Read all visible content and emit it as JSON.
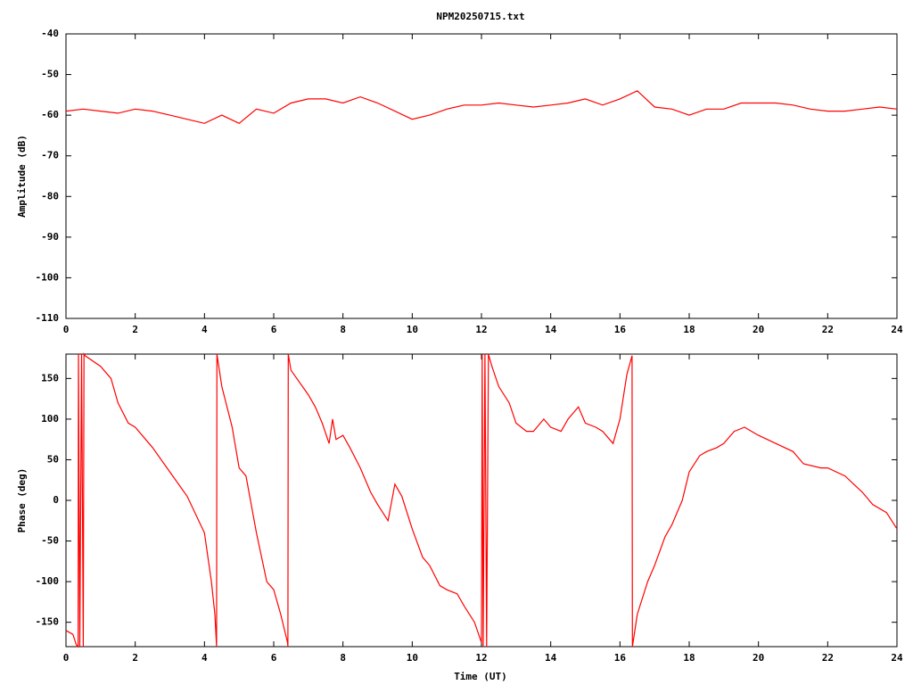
{
  "chart_data": [
    {
      "type": "line",
      "title": "NPM20250715.txt",
      "ylabel": "Amplitude (dB)",
      "color": "#ff0000",
      "xlim": [
        0,
        24
      ],
      "xticks": [
        0,
        2,
        4,
        6,
        8,
        10,
        12,
        14,
        16,
        18,
        20,
        22,
        24
      ],
      "ylim": [
        -110,
        -40
      ],
      "yticks": [
        -110,
        -100,
        -90,
        -80,
        -70,
        -60,
        -50,
        -40
      ],
      "x": [
        0,
        0.5,
        1,
        1.5,
        2,
        2.5,
        3,
        3.5,
        4,
        4.5,
        5,
        5.5,
        6,
        6.5,
        7,
        7.5,
        8,
        8.5,
        9,
        9.5,
        10,
        10.5,
        11,
        11.5,
        12,
        12.5,
        13,
        13.5,
        14,
        14.5,
        15,
        15.5,
        16,
        16.5,
        17,
        17.5,
        18,
        18.5,
        19,
        19.5,
        20,
        20.5,
        21,
        21.5,
        22,
        22.5,
        23,
        23.5,
        24
      ],
      "values": [
        -59,
        -58.5,
        -59,
        -59.5,
        -58.5,
        -59,
        -60,
        -61,
        -62,
        -60,
        -62,
        -58.5,
        -59.5,
        -57,
        -56,
        -56,
        -57,
        -55.5,
        -57,
        -59,
        -61,
        -60,
        -58.5,
        -57.5,
        -57.5,
        -57,
        -57.5,
        -58,
        -57.5,
        -57,
        -56,
        -57.5,
        -56,
        -54,
        -58,
        -58.5,
        -60,
        -58.5,
        -58.5,
        -57,
        -57,
        -57,
        -57.5,
        -58.5,
        -59,
        -59,
        -58.5,
        -58,
        -58.5
      ]
    },
    {
      "type": "line",
      "xlabel": "Time (UT)",
      "ylabel": "Phase (deg)",
      "color": "#ff0000",
      "xlim": [
        0,
        24
      ],
      "xticks": [
        0,
        2,
        4,
        6,
        8,
        10,
        12,
        14,
        16,
        18,
        20,
        22,
        24
      ],
      "ylim": [
        -180,
        180
      ],
      "yticks": [
        -150,
        -100,
        -50,
        0,
        50,
        100,
        150
      ],
      "x": [
        0,
        0.2,
        0.3,
        0.35,
        0.36,
        0.4,
        0.45,
        0.5,
        0.52,
        0.55,
        1,
        1.3,
        1.5,
        1.8,
        2,
        2.5,
        3,
        3.5,
        4,
        4.2,
        4.3,
        4.35,
        4.36,
        4.5,
        4.8,
        5,
        5.2,
        5.5,
        5.8,
        6,
        6.2,
        6.4,
        6.41,
        6.42,
        6.5,
        7,
        7.2,
        7.4,
        7.6,
        7.7,
        7.8,
        8,
        8.2,
        8.5,
        8.8,
        9,
        9.3,
        9.5,
        9.7,
        10,
        10.3,
        10.5,
        10.8,
        11,
        11.3,
        11.5,
        11.8,
        12,
        12.02,
        12.05,
        12.1,
        12.15,
        12.2,
        12.3,
        12.5,
        12.8,
        13,
        13.3,
        13.5,
        13.8,
        14,
        14.3,
        14.5,
        14.8,
        15,
        15.3,
        15.5,
        15.8,
        16,
        16.2,
        16.35,
        16.36,
        16.5,
        16.8,
        17,
        17.3,
        17.5,
        17.8,
        18,
        18.3,
        18.5,
        18.8,
        19,
        19.3,
        19.6,
        19.8,
        20,
        20.5,
        21,
        21.3,
        21.8,
        22,
        22.5,
        23,
        23.3,
        23.7,
        24
      ],
      "values": [
        -160,
        -165,
        -178,
        -180,
        180,
        -180,
        180,
        -180,
        180,
        178,
        165,
        150,
        120,
        95,
        90,
        65,
        35,
        5,
        -40,
        -100,
        -140,
        -180,
        180,
        140,
        90,
        40,
        30,
        -40,
        -100,
        -110,
        -140,
        -175,
        -180,
        180,
        160,
        130,
        115,
        95,
        70,
        100,
        75,
        80,
        65,
        40,
        10,
        -5,
        -25,
        20,
        5,
        -35,
        -70,
        -80,
        -105,
        -110,
        -115,
        -130,
        -150,
        -175,
        180,
        -180,
        180,
        -180,
        180,
        165,
        140,
        120,
        95,
        85,
        85,
        100,
        90,
        85,
        100,
        115,
        95,
        90,
        85,
        70,
        100,
        155,
        178,
        -180,
        -140,
        -100,
        -80,
        -45,
        -30,
        0,
        35,
        55,
        60,
        65,
        70,
        85,
        90,
        85,
        80,
        70,
        60,
        45,
        40,
        40,
        30,
        10,
        -5,
        -15,
        -35
      ]
    }
  ]
}
